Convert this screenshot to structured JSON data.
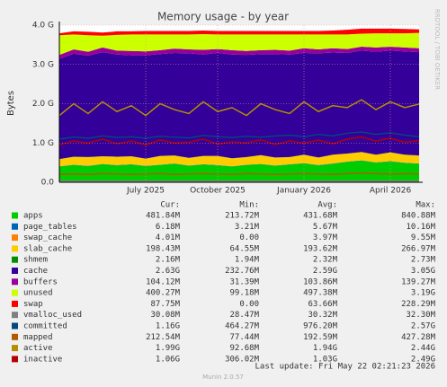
{
  "chart_data": {
    "type": "area",
    "title": "Memory usage - by year",
    "y_label": "Bytes",
    "watermark": "RRDTOOL / TOBI OETIKER",
    "categories": [
      null,
      null,
      null,
      null,
      null,
      null,
      "July 2025",
      null,
      null,
      null,
      null,
      "October 2025",
      null,
      null,
      null,
      null,
      null,
      "January 2026",
      null,
      null,
      null,
      null,
      null,
      "April 2026",
      null,
      null
    ],
    "ylim": [
      0,
      4
    ],
    "yticks": [
      {
        "value": 0,
        "label": "0.0"
      },
      {
        "value": 1,
        "label": "1.0 G"
      },
      {
        "value": 2,
        "label": "2.0 G"
      },
      {
        "value": 3,
        "label": "3.0 G"
      },
      {
        "value": 4,
        "label": "4.0 G"
      }
    ],
    "grid": true,
    "legend_headers": [
      "Cur:",
      "Min:",
      "Avg:",
      "Max:"
    ],
    "series": [
      {
        "name": "apps",
        "color": "#00cc00",
        "kind": "area",
        "values": [
          0.4,
          0.44,
          0.41,
          0.46,
          0.43,
          0.45,
          0.41,
          0.44,
          0.47,
          0.42,
          0.45,
          0.43,
          0.4,
          0.44,
          0.46,
          0.42,
          0.45,
          0.48,
          0.43,
          0.47,
          0.52,
          0.55,
          0.5,
          0.53,
          0.49,
          0.47
        ],
        "stats": [
          "481.84M",
          "213.72M",
          "431.68M",
          "840.88M"
        ]
      },
      {
        "name": "page_tables",
        "color": "#0066b3",
        "kind": "area",
        "values": [
          0.006,
          0.006,
          0.006,
          0.006,
          0.006,
          0.006,
          0.006,
          0.006,
          0.006,
          0.006,
          0.006,
          0.006,
          0.006,
          0.006,
          0.006,
          0.006,
          0.006,
          0.006,
          0.006,
          0.006,
          0.006,
          0.006,
          0.006,
          0.006,
          0.006,
          0.006
        ],
        "stats": [
          "6.18M",
          "3.21M",
          "5.67M",
          "10.16M"
        ]
      },
      {
        "name": "swap_cache",
        "color": "#ff8000",
        "kind": "area",
        "values": [
          0.004,
          0.004,
          0.004,
          0.004,
          0.004,
          0.004,
          0.004,
          0.004,
          0.004,
          0.004,
          0.004,
          0.004,
          0.004,
          0.004,
          0.004,
          0.004,
          0.004,
          0.004,
          0.004,
          0.004,
          0.004,
          0.004,
          0.004,
          0.004,
          0.004,
          0.004
        ],
        "stats": [
          "4.01M",
          "0.00",
          "3.97M",
          "9.55M"
        ]
      },
      {
        "name": "slab_cache",
        "color": "#ffcc00",
        "kind": "area",
        "values": [
          0.18,
          0.2,
          0.22,
          0.19,
          0.21,
          0.2,
          0.18,
          0.22,
          0.2,
          0.19,
          0.21,
          0.23,
          0.2,
          0.19,
          0.22,
          0.2,
          0.18,
          0.21,
          0.19,
          0.22,
          0.2,
          0.21,
          0.19,
          0.22,
          0.2,
          0.2
        ],
        "stats": [
          "198.43M",
          "64.55M",
          "193.62M",
          "266.97M"
        ]
      },
      {
        "name": "shmem",
        "color": "#008f00",
        "kind": "area",
        "values": [
          0.002,
          0.002,
          0.002,
          0.002,
          0.002,
          0.002,
          0.002,
          0.002,
          0.002,
          0.002,
          0.002,
          0.002,
          0.002,
          0.002,
          0.002,
          0.002,
          0.002,
          0.002,
          0.002,
          0.002,
          0.002,
          0.002,
          0.002,
          0.002,
          0.002,
          0.002
        ],
        "stats": [
          "2.16M",
          "1.94M",
          "2.32M",
          "2.73M"
        ]
      },
      {
        "name": "cache",
        "color": "#330099",
        "kind": "area",
        "values": [
          2.55,
          2.62,
          2.58,
          2.65,
          2.6,
          2.57,
          2.63,
          2.59,
          2.61,
          2.66,
          2.58,
          2.62,
          2.64,
          2.6,
          2.57,
          2.63,
          2.61,
          2.59,
          2.65,
          2.6,
          2.56,
          2.58,
          2.62,
          2.59,
          2.63,
          2.63
        ],
        "stats": [
          "2.63G",
          "232.76M",
          "2.59G",
          "3.05G"
        ]
      },
      {
        "name": "buffers",
        "color": "#990099",
        "kind": "area",
        "values": [
          0.1,
          0.11,
          0.1,
          0.12,
          0.1,
          0.11,
          0.1,
          0.1,
          0.11,
          0.1,
          0.12,
          0.1,
          0.11,
          0.1,
          0.1,
          0.11,
          0.1,
          0.12,
          0.1,
          0.11,
          0.1,
          0.1,
          0.11,
          0.1,
          0.1,
          0.1
        ],
        "stats": [
          "104.12M",
          "31.39M",
          "103.86M",
          "139.27M"
        ]
      },
      {
        "name": "unused",
        "color": "#ccff00",
        "kind": "area",
        "values": [
          0.5,
          0.38,
          0.42,
          0.3,
          0.4,
          0.42,
          0.43,
          0.4,
          0.36,
          0.38,
          0.4,
          0.37,
          0.4,
          0.42,
          0.4,
          0.39,
          0.41,
          0.35,
          0.38,
          0.35,
          0.37,
          0.33,
          0.36,
          0.34,
          0.36,
          0.39
        ],
        "stats": [
          "400.27M",
          "99.18M",
          "497.38M",
          "3.19G"
        ]
      },
      {
        "name": "swap",
        "color": "#ff0000",
        "kind": "area",
        "values": [
          0.05,
          0.08,
          0.09,
          0.08,
          0.09,
          0.08,
          0.09,
          0.09,
          0.09,
          0.09,
          0.09,
          0.09,
          0.09,
          0.09,
          0.09,
          0.09,
          0.09,
          0.09,
          0.09,
          0.1,
          0.12,
          0.13,
          0.12,
          0.12,
          0.11,
          0.09
        ],
        "stats": [
          "87.75M",
          "0.00",
          "63.66M",
          "228.29M"
        ]
      },
      {
        "name": "vmalloc_used",
        "color": "#808080",
        "kind": "line",
        "values": [
          0.03,
          0.03,
          0.03,
          0.03,
          0.03,
          0.03,
          0.03,
          0.03,
          0.03,
          0.03,
          0.03,
          0.03,
          0.03,
          0.03,
          0.03,
          0.03,
          0.03,
          0.03,
          0.03,
          0.03,
          0.03,
          0.03,
          0.03,
          0.03,
          0.03,
          0.03
        ],
        "stats": [
          "30.08M",
          "28.47M",
          "30.32M",
          "32.30M"
        ]
      },
      {
        "name": "committed",
        "color": "#00487d",
        "kind": "line",
        "values": [
          1.1,
          1.15,
          1.12,
          1.18,
          1.14,
          1.16,
          1.12,
          1.17,
          1.15,
          1.13,
          1.19,
          1.16,
          1.14,
          1.17,
          1.15,
          1.18,
          1.2,
          1.16,
          1.22,
          1.18,
          1.25,
          1.28,
          1.22,
          1.26,
          1.2,
          1.16
        ],
        "stats": [
          "1.16G",
          "464.27M",
          "976.20M",
          "2.57G"
        ]
      },
      {
        "name": "mapped",
        "color": "#b35a00",
        "kind": "line",
        "values": [
          0.2,
          0.21,
          0.2,
          0.22,
          0.21,
          0.2,
          0.21,
          0.22,
          0.2,
          0.21,
          0.22,
          0.21,
          0.2,
          0.22,
          0.21,
          0.2,
          0.21,
          0.22,
          0.21,
          0.2,
          0.22,
          0.23,
          0.22,
          0.21,
          0.22,
          0.21
        ],
        "stats": [
          "212.54M",
          "77.44M",
          "192.59M",
          "427.28M"
        ]
      },
      {
        "name": "active",
        "color": "#b38f00",
        "kind": "line",
        "values": [
          1.7,
          2.0,
          1.75,
          2.05,
          1.8,
          1.95,
          1.7,
          2.0,
          1.85,
          1.75,
          2.05,
          1.8,
          1.9,
          1.7,
          2.0,
          1.85,
          1.75,
          2.05,
          1.8,
          1.95,
          1.9,
          2.1,
          1.85,
          2.05,
          1.9,
          1.99
        ],
        "stats": [
          "1.99G",
          "92.68M",
          "1.94G",
          "2.44G"
        ]
      },
      {
        "name": "inactive",
        "color": "#b30000",
        "kind": "line",
        "values": [
          0.95,
          1.05,
          1.0,
          1.1,
          0.98,
          1.05,
          0.95,
          1.08,
          1.0,
          1.02,
          1.1,
          0.97,
          1.03,
          1.0,
          1.08,
          0.96,
          1.05,
          1.0,
          1.07,
          0.98,
          1.1,
          1.15,
          1.05,
          1.12,
          1.02,
          1.06
        ],
        "stats": [
          "1.06G",
          "306.02M",
          "1.03G",
          "2.49G"
        ]
      }
    ],
    "last_update": "Last update: Fri May 22 02:21:23 2026",
    "footer": "Munin 2.0.57"
  }
}
